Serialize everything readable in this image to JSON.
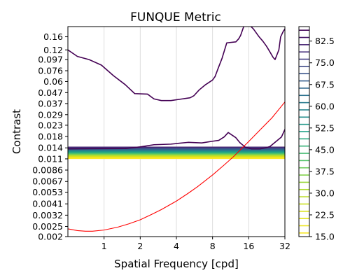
{
  "chart_data": {
    "type": "line",
    "title": "FUNQUE Metric",
    "xlabel": "Spatial Frequency [cpd]",
    "ylabel": "Contrast",
    "x_scale": "log2",
    "y_scale": "log",
    "xlim": [
      0.5,
      32
    ],
    "ylim": [
      0.002,
      0.2
    ],
    "x_ticks": [
      1,
      2,
      4,
      8,
      16,
      32
    ],
    "x_tick_labels": [
      "1",
      "2",
      "4",
      "8",
      "16",
      "32"
    ],
    "y_ticks": [
      0.002,
      0.0025,
      0.0032,
      0.0041,
      0.0053,
      0.0067,
      0.0086,
      0.011,
      0.014,
      0.018,
      0.023,
      0.029,
      0.037,
      0.047,
      0.06,
      0.076,
      0.097,
      0.12,
      0.16
    ],
    "y_tick_labels": [
      "0.002",
      "0.0025",
      "0.0032",
      "0.0041",
      "0.0053",
      "0.0067",
      "0.0086",
      "0.011",
      "0.014",
      "0.018",
      "0.023",
      "0.029",
      "0.037",
      "0.047",
      "0.06",
      "0.076",
      "0.097",
      "0.12",
      "0.16"
    ],
    "grid": "vertical",
    "red_curve": {
      "color": "#ff0000",
      "x": [
        0.5,
        0.6,
        0.7,
        0.8,
        1.0,
        1.3,
        1.6,
        2.0,
        2.5,
        3.0,
        4.0,
        5.0,
        6.0,
        8.0,
        10.0,
        12.0,
        16.0,
        20.0,
        25.0,
        32.0
      ],
      "y": [
        0.00237,
        0.00228,
        0.00225,
        0.00225,
        0.00231,
        0.00246,
        0.00264,
        0.00289,
        0.00326,
        0.00362,
        0.00436,
        0.00516,
        0.00598,
        0.00773,
        0.00963,
        0.0116,
        0.0161,
        0.0209,
        0.0271,
        0.0383
      ]
    },
    "contour_series": [
      {
        "level": 82.5,
        "color": "#440154",
        "x": [
          0.5,
          0.6,
          0.75,
          0.95,
          1.2,
          1.5,
          1.8,
          2.3,
          2.6,
          3.0,
          3.6,
          4.5,
          5.2,
          5.6,
          6.2,
          7.0,
          8.0,
          8.4,
          8.9,
          9.6,
          10.5,
          12.5,
          13.2,
          13.7,
          14.3,
          15.0,
          16.0,
          17.5,
          19.5,
          21.0,
          22.5,
          24.0,
          25.5,
          26.5,
          28.5,
          29.5,
          31.0,
          32.0
        ],
        "y": [
          0.12,
          0.104,
          0.097,
          0.086,
          0.068,
          0.056,
          0.046,
          0.0455,
          0.041,
          0.0395,
          0.0395,
          0.041,
          0.042,
          0.044,
          0.05,
          0.056,
          0.062,
          0.067,
          0.08,
          0.1,
          0.14,
          0.143,
          0.153,
          0.165,
          0.19,
          0.22,
          0.21,
          0.19,
          0.16,
          0.145,
          0.13,
          0.115,
          0.102,
          0.097,
          0.12,
          0.16,
          0.18,
          0.19
        ]
      },
      {
        "level": 82.5,
        "color": "#440154",
        "x": [
          0.5,
          1.5,
          2.0,
          2.6,
          3.6,
          5.0,
          6.5,
          8.0,
          9.0,
          10.0,
          10.8,
          12.5,
          13.5,
          15.0,
          16.8,
          20.0,
          22.0,
          24.0,
          27.0,
          30.0,
          32.0
        ],
        "y": [
          0.0137,
          0.0138,
          0.0143,
          0.015,
          0.0152,
          0.0158,
          0.0156,
          0.0162,
          0.0165,
          0.0178,
          0.0196,
          0.0175,
          0.0157,
          0.0142,
          0.0137,
          0.0137,
          0.014,
          0.0144,
          0.0161,
          0.0178,
          0.021
        ]
      }
    ],
    "band": {
      "y_top": 0.0142,
      "y_bottom": 0.0111,
      "levels": [
        82.5,
        80,
        77.5,
        75,
        72.5,
        70,
        67.5,
        65,
        62.5,
        60,
        57.5,
        55,
        52.5,
        50,
        47.5,
        45,
        42.5,
        40,
        37.5,
        35,
        32.5,
        30,
        27.5,
        25,
        22.5,
        20,
        17.5,
        15
      ]
    },
    "colorbar": {
      "min": 15.0,
      "max": 87.5,
      "ticks": [
        82.5,
        75.0,
        67.5,
        60.0,
        52.5,
        45.0,
        37.5,
        30.0,
        22.5,
        15.0
      ],
      "tick_labels": [
        "82.5",
        "75.0",
        "67.5",
        "60.0",
        "52.5",
        "45.0",
        "37.5",
        "30.0",
        "22.5",
        "15.0"
      ],
      "colormap": "viridis"
    }
  }
}
